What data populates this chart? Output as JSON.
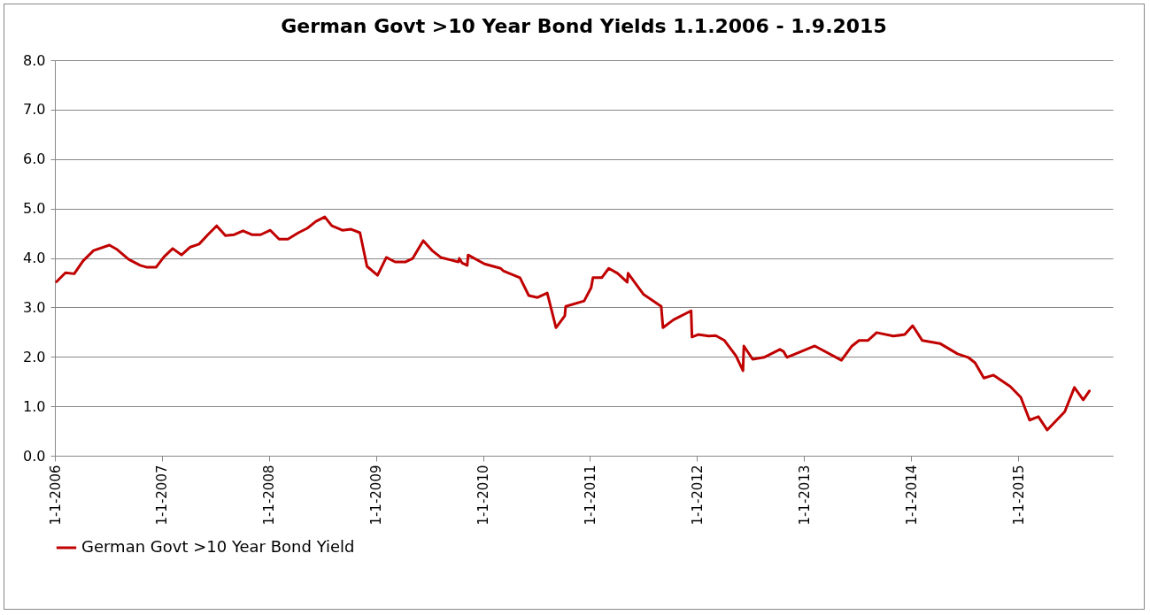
{
  "chart_data": {
    "type": "line",
    "title": "German Govt >10 Year Bond Yields 1.1.2006 - 1.9.2015",
    "x": [
      "2006-01-07",
      "2006-02-06",
      "2006-03-08",
      "2006-04-07",
      "2006-05-13",
      "2006-07-06",
      "2006-07-30",
      "2006-09-10",
      "2006-10-19",
      "2006-11-12",
      "2006-12-12",
      "2007-01-08",
      "2007-02-07",
      "2007-03-09",
      "2007-04-08",
      "2007-05-08",
      "2007-06-07",
      "2007-07-07",
      "2007-08-06",
      "2007-09-05",
      "2007-10-05",
      "2007-11-04",
      "2007-12-04",
      "2008-01-06",
      "2008-02-05",
      "2008-03-06",
      "2008-04-11",
      "2008-05-11",
      "2008-06-10",
      "2008-07-10",
      "2008-08-03",
      "2008-09-08",
      "2008-10-08",
      "2008-11-07",
      "2008-12-01",
      "2009-01-06",
      "2009-02-05",
      "2009-03-07",
      "2009-04-12",
      "2009-05-06",
      "2009-06-11",
      "2009-07-11",
      "2009-08-10",
      "2009-10-09",
      "2009-10-12",
      "2009-10-21",
      "2009-11-08",
      "2009-11-11",
      "2010-01-06",
      "2010-03-02",
      "2010-03-11",
      "2010-05-07",
      "2010-06-06",
      "2010-07-06",
      "2010-08-08",
      "2010-09-07",
      "2010-10-07",
      "2010-10-10",
      "2010-12-12",
      "2011-01-05",
      "2011-01-11",
      "2011-02-10",
      "2011-03-06",
      "2011-04-05",
      "2011-05-08",
      "2011-05-11",
      "2011-07-03",
      "2011-09-01",
      "2011-09-07",
      "2011-10-13",
      "2011-12-12",
      "2011-12-15",
      "2012-01-05",
      "2012-02-10",
      "2012-03-05",
      "2012-04-04",
      "2012-05-13",
      "2012-06-06",
      "2012-06-09",
      "2012-07-09",
      "2012-08-17",
      "2012-10-10",
      "2012-10-22",
      "2012-11-03",
      "2013-02-06",
      "2013-05-08",
      "2013-06-13",
      "2013-07-07",
      "2013-08-06",
      "2013-09-05",
      "2013-11-01",
      "2013-12-10",
      "2014-01-06",
      "2014-02-08",
      "2014-04-09",
      "2014-06-08",
      "2014-07-14",
      "2014-08-07",
      "2014-09-06",
      "2014-10-09",
      "2014-12-05",
      "2015-01-10",
      "2015-02-09",
      "2015-03-11",
      "2015-04-10",
      "2015-06-09",
      "2015-07-12",
      "2015-08-11",
      "2015-09-01"
    ],
    "series": [
      {
        "name": "German Govt >10 Year Bond Yield",
        "color": "#c00000",
        "values": [
          3.52,
          3.7,
          3.68,
          3.94,
          4.15,
          4.26,
          4.18,
          3.97,
          3.85,
          3.81,
          3.81,
          4.02,
          4.19,
          4.06,
          4.22,
          4.28,
          4.47,
          4.65,
          4.45,
          4.47,
          4.55,
          4.47,
          4.47,
          4.56,
          4.38,
          4.38,
          4.51,
          4.6,
          4.74,
          4.83,
          4.65,
          4.56,
          4.58,
          4.51,
          3.83,
          3.65,
          4.01,
          3.92,
          3.92,
          3.99,
          4.35,
          4.15,
          4.01,
          3.92,
          3.99,
          3.9,
          3.85,
          4.06,
          3.88,
          3.79,
          3.74,
          3.6,
          3.24,
          3.2,
          3.29,
          2.59,
          2.83,
          3.02,
          3.13,
          3.4,
          3.6,
          3.6,
          3.79,
          3.69,
          3.51,
          3.69,
          3.26,
          3.02,
          2.59,
          2.75,
          2.93,
          2.4,
          2.45,
          2.42,
          2.43,
          2.33,
          2.02,
          1.72,
          2.22,
          1.95,
          1.99,
          2.15,
          2.11,
          1.99,
          2.22,
          1.93,
          2.22,
          2.33,
          2.33,
          2.49,
          2.42,
          2.45,
          2.63,
          2.33,
          2.27,
          2.06,
          1.99,
          1.88,
          1.57,
          1.63,
          1.4,
          1.18,
          0.72,
          0.79,
          0.52,
          0.89,
          1.38,
          1.13,
          1.31
        ]
      }
    ],
    "xlim": [
      "2006-01-01",
      "2015-11-20"
    ],
    "xticks": [
      {
        "value": "2006-01-01",
        "label": "1-1-2006"
      },
      {
        "value": "2007-01-01",
        "label": "1-1-2007"
      },
      {
        "value": "2008-01-01",
        "label": "1-1-2008"
      },
      {
        "value": "2009-01-01",
        "label": "1-1-2009"
      },
      {
        "value": "2010-01-01",
        "label": "1-1-2010"
      },
      {
        "value": "2011-01-01",
        "label": "1-1-2011"
      },
      {
        "value": "2012-01-01",
        "label": "1-1-2012"
      },
      {
        "value": "2013-01-01",
        "label": "1-1-2013"
      },
      {
        "value": "2014-01-01",
        "label": "1-1-2014"
      },
      {
        "value": "2015-01-01",
        "label": "1-1-2015"
      }
    ],
    "ylim": [
      0,
      8
    ],
    "yticks": [
      {
        "value": 0,
        "label": "0.0"
      },
      {
        "value": 1,
        "label": "1.0"
      },
      {
        "value": 2,
        "label": "2.0"
      },
      {
        "value": 3,
        "label": "3.0"
      },
      {
        "value": 4,
        "label": "4.0"
      },
      {
        "value": 5,
        "label": "5.0"
      },
      {
        "value": 6,
        "label": "6.0"
      },
      {
        "value": 7,
        "label": "7.0"
      },
      {
        "value": 8,
        "label": "8.0"
      }
    ],
    "grid": "y",
    "legend": "bottom",
    "marker": "none",
    "line_style": "solid"
  }
}
